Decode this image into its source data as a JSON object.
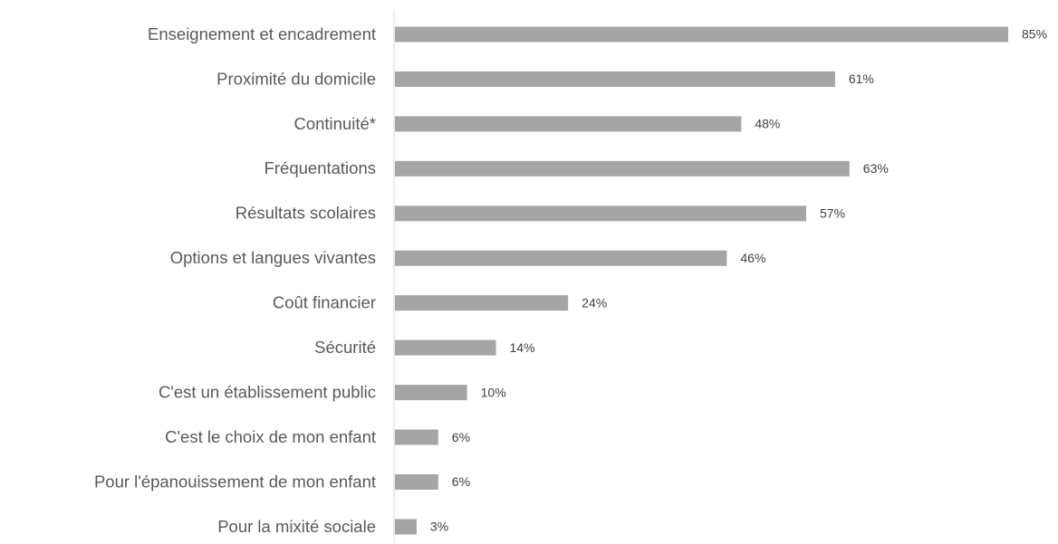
{
  "chart_data": {
    "type": "hbar",
    "categories": [
      "Enseignement et encadrement",
      "Proximité du domicile",
      "Continuité*",
      "Fréquentations",
      "Résultats scolaires",
      "Options et langues vivantes",
      "Coût financier",
      "Sécurité",
      "C'est un établissement public",
      "C'est le choix de mon enfant",
      "Pour l'épanouissement de mon enfant",
      "Pour la mixité sociale"
    ],
    "values": [
      85,
      61,
      48,
      63,
      57,
      46,
      24,
      14,
      10,
      6,
      6,
      3
    ],
    "value_labels": [
      "85%",
      "61%",
      "48%",
      "63%",
      "57%",
      "46%",
      "24%",
      "14%",
      "10%",
      "6%",
      "6%",
      "3%"
    ],
    "color": "#a5a5a5"
  }
}
